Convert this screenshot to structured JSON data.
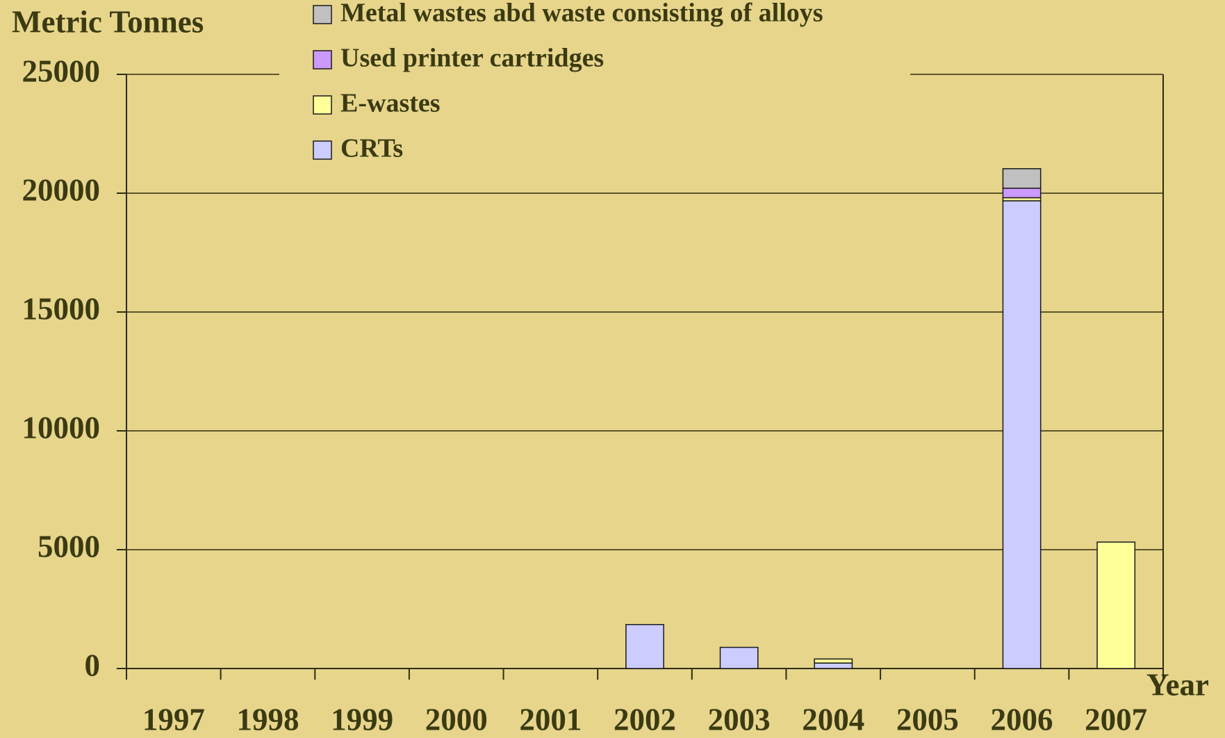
{
  "chart_data": {
    "type": "stacked_bar",
    "y_label": "Metric Tonnes",
    "x_label": "Year",
    "categories": [
      "1997",
      "1998",
      "1999",
      "2000",
      "2001",
      "2002",
      "2003",
      "2004",
      "2005",
      "2006",
      "2007"
    ],
    "series": [
      {
        "name": "CRTs",
        "color": "#ccccff",
        "values": [
          0,
          0,
          0,
          0,
          0,
          1850,
          890,
          230,
          0,
          19680,
          0
        ]
      },
      {
        "name": "E-wastes",
        "color": "#ffff99",
        "values": [
          0,
          0,
          0,
          0,
          0,
          0,
          0,
          170,
          0,
          130,
          5320
        ]
      },
      {
        "name": "Used printer cartridges",
        "color": "#cc99ff",
        "values": [
          0,
          0,
          0,
          0,
          0,
          0,
          0,
          0,
          0,
          400,
          0
        ]
      },
      {
        "name": "Metal wastes abd waste consisting of alloys",
        "color": "#c0c0c0",
        "values": [
          0,
          0,
          0,
          0,
          0,
          0,
          0,
          0,
          0,
          820,
          0
        ]
      }
    ],
    "ylim": [
      0,
      25000
    ],
    "yticks": [
      0,
      5000,
      10000,
      15000,
      20000,
      25000
    ],
    "grid": true,
    "legend": "top"
  }
}
